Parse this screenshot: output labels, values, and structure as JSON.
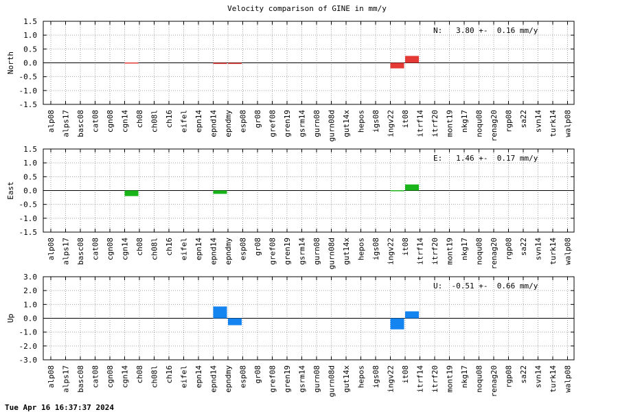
{
  "title": "Velocity comparison of GINE in mm/y",
  "timestamp": "Tue Apr 16 16:37:37 2024",
  "chart_data": {
    "type": "bar",
    "categories": [
      "alp08",
      "alps17",
      "basc08",
      "cat08",
      "cgn08",
      "cgn14",
      "ch08",
      "ch08l",
      "ch16",
      "eifel",
      "epn14",
      "epnd14",
      "epndmy",
      "esp08",
      "gr08",
      "gref08",
      "gren19",
      "gsrm14",
      "gurn08",
      "gurn08d",
      "gut14x",
      "hepos",
      "igs08",
      "ingv22",
      "it08",
      "itrf14",
      "itrf20",
      "mont19",
      "nkg17",
      "noqu08",
      "renag20",
      "rgp08",
      "sa22",
      "svn14",
      "turk14",
      "walp08"
    ],
    "panels": [
      {
        "ylabel": "North",
        "annotation": "N:   3.80 +-  0.16 mm/y",
        "ylim": [
          -1.5,
          1.5
        ],
        "ticks": [
          "1.5",
          "1.0",
          "0.5",
          "0.0",
          "-0.5",
          "-1.0",
          "-1.5"
        ],
        "color": "#e53935",
        "values": [
          0,
          0,
          0,
          0,
          0,
          -0.03,
          0,
          0,
          0,
          0,
          0,
          -0.04,
          -0.04,
          0,
          0,
          0,
          0,
          0,
          0,
          0,
          0,
          0,
          0,
          -0.2,
          0.25,
          0,
          0,
          0,
          0,
          0,
          0,
          0,
          0,
          0,
          0,
          0
        ]
      },
      {
        "ylabel": "East",
        "annotation": "E:   1.46 +-  0.17 mm/y",
        "ylim": [
          -1.5,
          1.5
        ],
        "ticks": [
          "1.5",
          "1.0",
          "0.5",
          "0.0",
          "-0.5",
          "-1.0",
          "-1.5"
        ],
        "color": "#19b419",
        "values": [
          0,
          0,
          0,
          0,
          0,
          -0.2,
          0,
          0,
          0,
          0,
          0,
          -0.12,
          0,
          0,
          0,
          0,
          0,
          0,
          0,
          0,
          0,
          0,
          0,
          0.02,
          0.22,
          0,
          0,
          0,
          0,
          0,
          0,
          0,
          0,
          0,
          0,
          0
        ]
      },
      {
        "ylabel": "Up",
        "annotation": "U:  -0.51 +-  0.66 mm/y",
        "ylim": [
          -3.0,
          3.0
        ],
        "ticks": [
          "3.0",
          "2.0",
          "1.0",
          "0.0",
          "-1.0",
          "-2.0",
          "-3.0"
        ],
        "color": "#1484f0",
        "values": [
          0,
          0,
          0,
          0,
          0,
          0,
          0,
          0,
          0,
          0,
          0,
          0.85,
          -0.5,
          0,
          0,
          0,
          0,
          0,
          0,
          0,
          0,
          0,
          0,
          -0.8,
          0.5,
          0,
          0,
          0,
          0,
          0,
          0,
          0,
          0,
          0,
          0,
          0
        ]
      }
    ],
    "grid": true
  }
}
